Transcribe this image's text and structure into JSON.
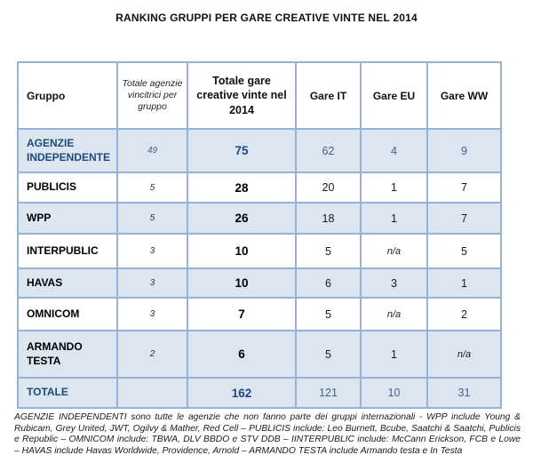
{
  "title": "RANKING GRUPPI PER GARE CREATIVE VINTE NEL 2014",
  "table": {
    "columns": [
      {
        "key": "gruppo",
        "label": "Gruppo"
      },
      {
        "key": "agenzie",
        "label": "Totale agenzie vincitrici per gruppo"
      },
      {
        "key": "totale",
        "label": "Totale gare creative vinte nel 2014"
      },
      {
        "key": "it",
        "label": "Gare IT"
      },
      {
        "key": "eu",
        "label": "Gare EU"
      },
      {
        "key": "ww",
        "label": "Gare WW"
      }
    ],
    "rows": [
      {
        "gruppo": "AGENZIE INDEPENDENTE",
        "agenzie": "49",
        "totale": "75",
        "it": "62",
        "eu": "4",
        "ww": "9",
        "shaded": true,
        "highlight": true
      },
      {
        "gruppo": "PUBLICIS",
        "agenzie": "5",
        "totale": "28",
        "it": "20",
        "eu": "1",
        "ww": "7",
        "shaded": false,
        "highlight": false
      },
      {
        "gruppo": "WPP",
        "agenzie": "5",
        "totale": "26",
        "it": "18",
        "eu": "1",
        "ww": "7",
        "shaded": true,
        "highlight": false
      },
      {
        "gruppo": "INTERPUBLIC",
        "agenzie": "3",
        "totale": "10",
        "it": "5",
        "eu": "n/a",
        "ww": "5",
        "shaded": false,
        "highlight": false
      },
      {
        "gruppo": "HAVAS",
        "agenzie": "3",
        "totale": "10",
        "it": "6",
        "eu": "3",
        "ww": "1",
        "shaded": true,
        "highlight": false
      },
      {
        "gruppo": "OMNICOM",
        "agenzie": "3",
        "totale": "7",
        "it": "5",
        "eu": "n/a",
        "ww": "2",
        "shaded": false,
        "highlight": false
      },
      {
        "gruppo": "ARMANDO TESTA",
        "agenzie": "2",
        "totale": "6",
        "it": "5",
        "eu": "1",
        "ww": "n/a",
        "shaded": true,
        "highlight": false
      },
      {
        "gruppo": "TOTALE",
        "agenzie": "",
        "totale": "162",
        "it": "121",
        "eu": "10",
        "ww": "31",
        "shaded": true,
        "highlight": true
      }
    ]
  },
  "footnote": "AGENZIE INDEPENDENTI sono tutte le agenzie che non fanno parte dei gruppi internazionali - WPP include Young & Rubicam, Grey United, JWT, Ogilvy & Mather, Red Cell – PUBLICIS include: Leo Burnett, Bcube, Saatchi & Saatchi, Publicis e Republic – OMNICOM include: TBWA, DLV BBDO e STV DDB – IINTERPUBLIC include: McCann Erickson, FCB e Lowe  – HAVAS include Havas Worldwide, Providence, Arnold –  ARMANDO TESTA include Armando testa e In Testa",
  "colors": {
    "border": "#95B3D7",
    "row_shade": "#DCE6F1",
    "blue_dark": "#1F497D",
    "blue_medium": "#44618E"
  }
}
